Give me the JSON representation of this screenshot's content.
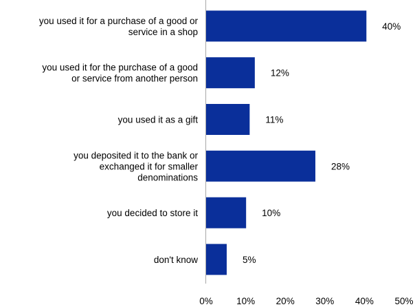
{
  "chart_data": {
    "type": "bar",
    "orientation": "horizontal",
    "title": "",
    "xlabel": "",
    "ylabel": "",
    "categories": [
      [
        "you used it for a purchase of a good or",
        "service in a shop"
      ],
      [
        "you used it for the purchase of a good",
        "or service from another person"
      ],
      [
        "you used it as a gift"
      ],
      [
        "you deposited it to the bank or",
        "exchanged it for smaller",
        "denominations"
      ],
      [
        "you decided to store it"
      ],
      [
        "don't know"
      ]
    ],
    "values": [
      40.5,
      12.3,
      11.0,
      27.6,
      10.1,
      5.2
    ],
    "value_labels": [
      "40%",
      "12%",
      "11%",
      "28%",
      "10%",
      "5%"
    ],
    "xlim": [
      0,
      50
    ],
    "xticks": [
      "0%",
      "10%",
      "20%",
      "30%",
      "40%",
      "50%"
    ],
    "grid": false,
    "legend": "none",
    "colors": {
      "bar": "#0a2f9a",
      "axis": "#a6a6a6"
    }
  }
}
